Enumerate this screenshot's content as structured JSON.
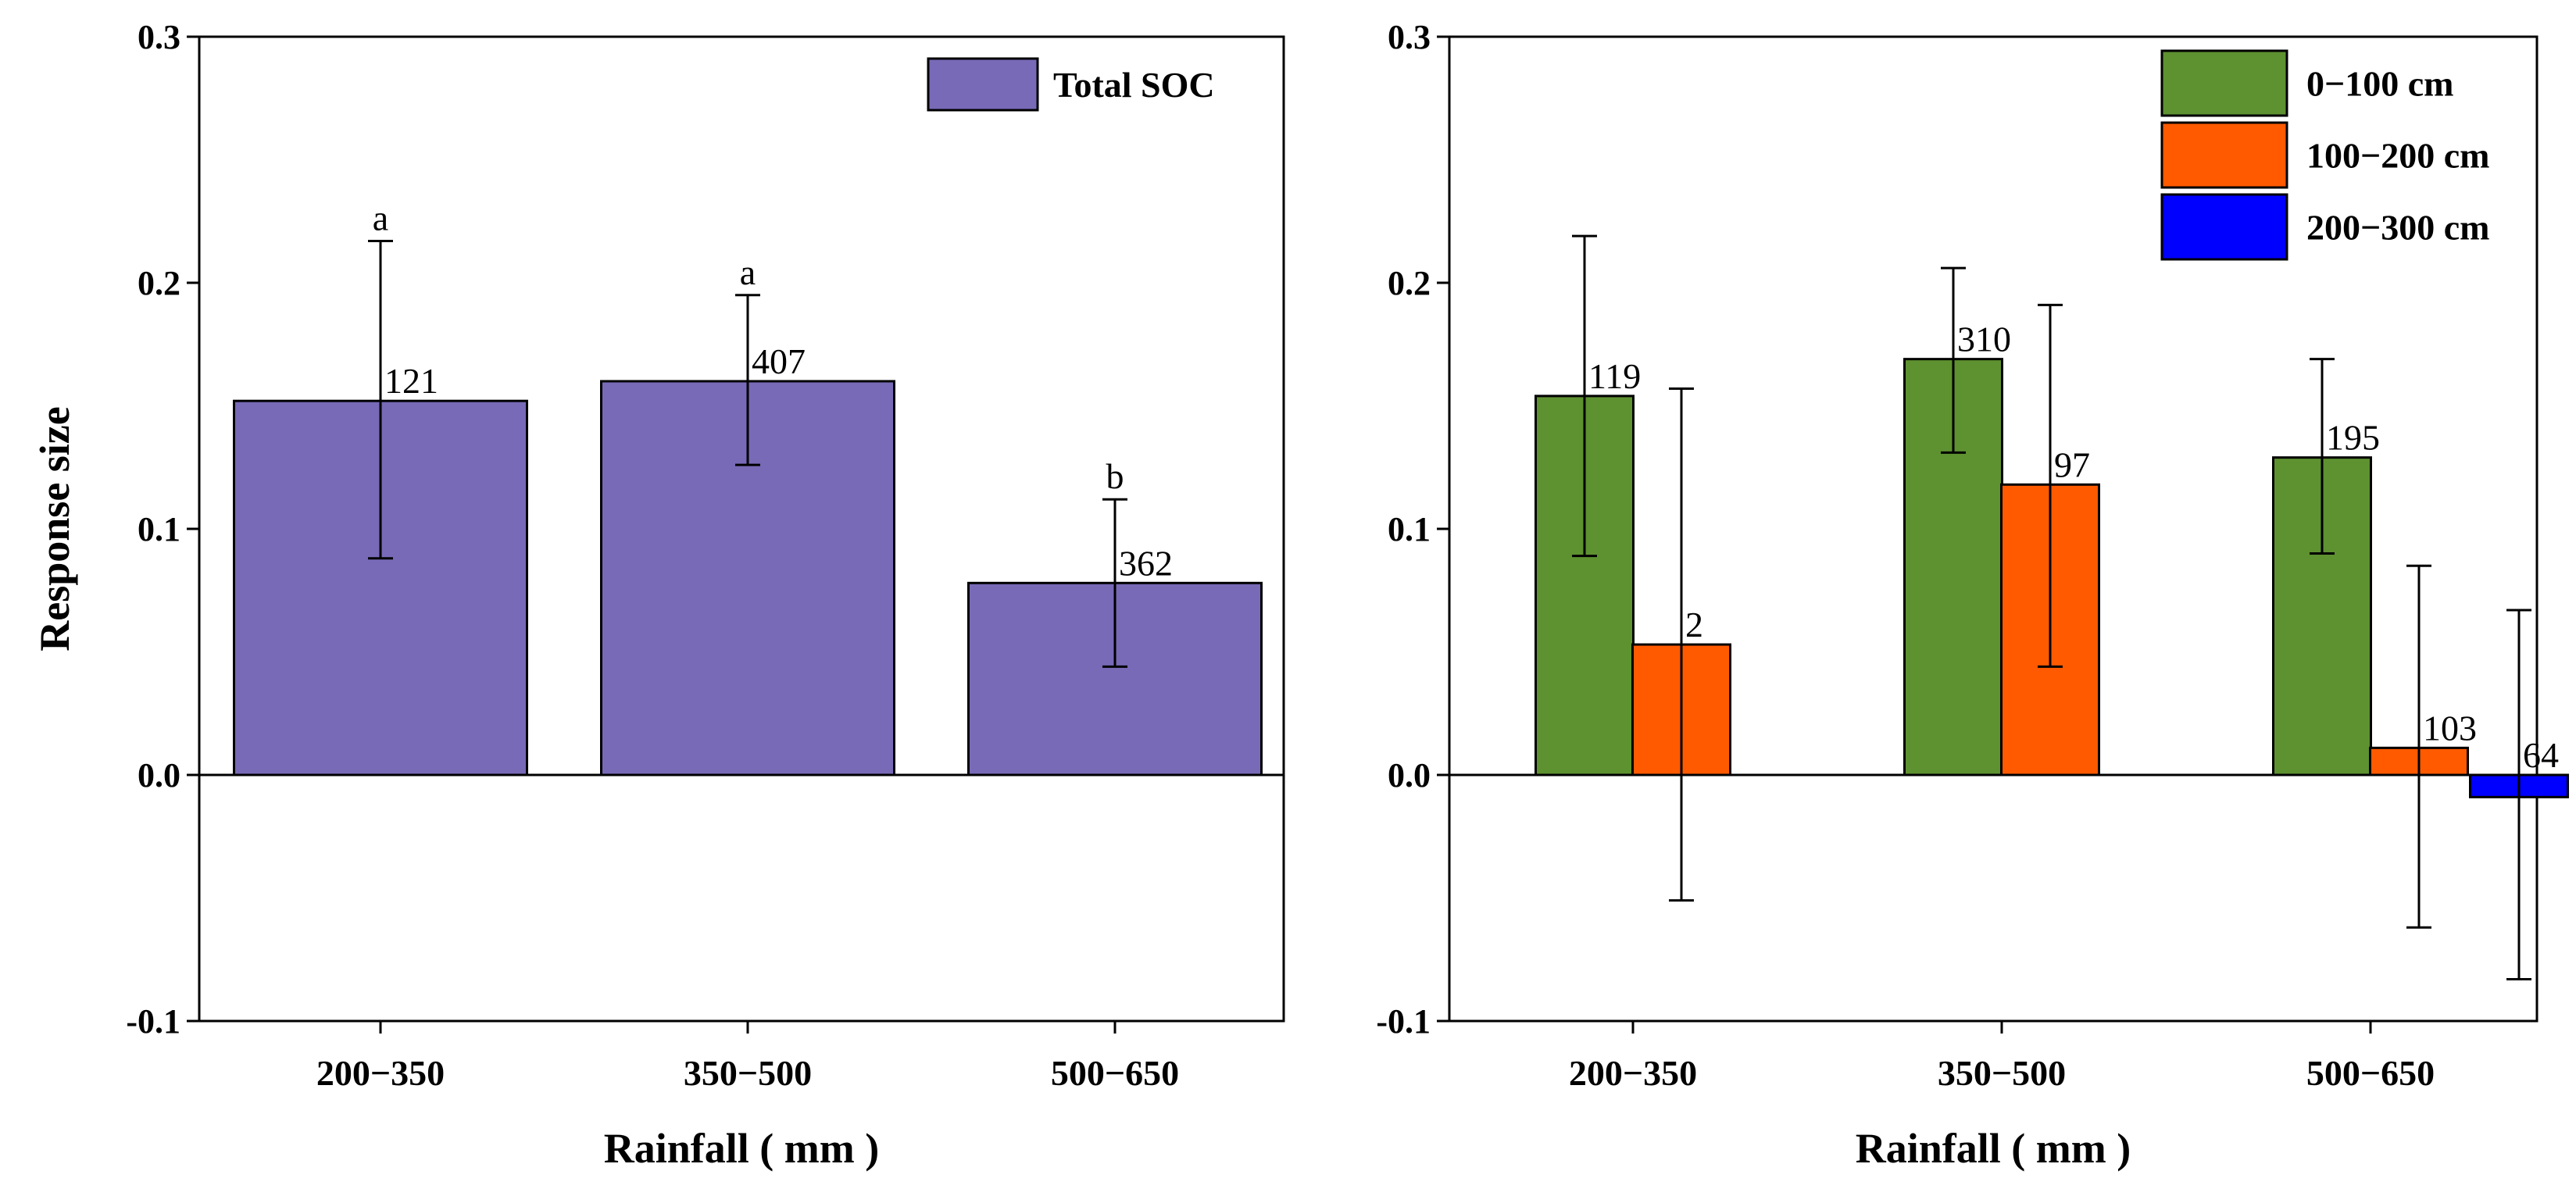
{
  "chart_data": [
    {
      "type": "bar",
      "title": "",
      "xlabel": "Rainfall ( mm )",
      "ylabel": "Response size",
      "ylim": [
        -0.1,
        0.3
      ],
      "yticks": [
        "-0.1",
        "0.0",
        "0.1",
        "0.2",
        "0.3"
      ],
      "categories": [
        "200−350",
        "350−500",
        "500−650"
      ],
      "legend_position": "top-right",
      "series": [
        {
          "name": "Total SOC",
          "color": "#786AB7",
          "values": [
            0.152,
            0.16,
            0.078
          ],
          "err_low": [
            0.088,
            0.126,
            0.044
          ],
          "err_high": [
            0.217,
            0.195,
            0.112
          ],
          "n": [
            "121",
            "407",
            "362"
          ],
          "letters": [
            "a",
            "a",
            "b"
          ]
        }
      ]
    },
    {
      "type": "bar",
      "title": "",
      "xlabel": "Rainfall ( mm )",
      "ylabel": "",
      "ylim": [
        -0.1,
        0.3
      ],
      "yticks": [
        "-0.1",
        "0.0",
        "0.1",
        "0.2",
        "0.3"
      ],
      "categories": [
        "200−350",
        "350−500",
        "500−650"
      ],
      "legend_position": "top-right",
      "series": [
        {
          "name": "0−100 cm",
          "color": "#5E9130",
          "values": [
            0.154,
            0.169,
            0.129
          ],
          "err_low": [
            0.089,
            0.131,
            0.09
          ],
          "err_high": [
            0.219,
            0.206,
            0.169
          ],
          "n": [
            "119",
            "310",
            "195"
          ]
        },
        {
          "name": "100−200 cm",
          "color": "#FF5A00",
          "values": [
            0.053,
            0.118,
            0.011
          ],
          "err_low": [
            -0.051,
            0.044,
            -0.062
          ],
          "err_high": [
            0.157,
            0.191,
            0.085
          ],
          "n": [
            "2",
            "97",
            "103"
          ]
        },
        {
          "name": "200−300 cm",
          "color": "#0000FF",
          "values": [
            null,
            null,
            -0.009
          ],
          "err_low": [
            null,
            null,
            -0.083
          ],
          "err_high": [
            null,
            null,
            0.067
          ],
          "n": [
            null,
            null,
            "64"
          ]
        }
      ]
    }
  ]
}
